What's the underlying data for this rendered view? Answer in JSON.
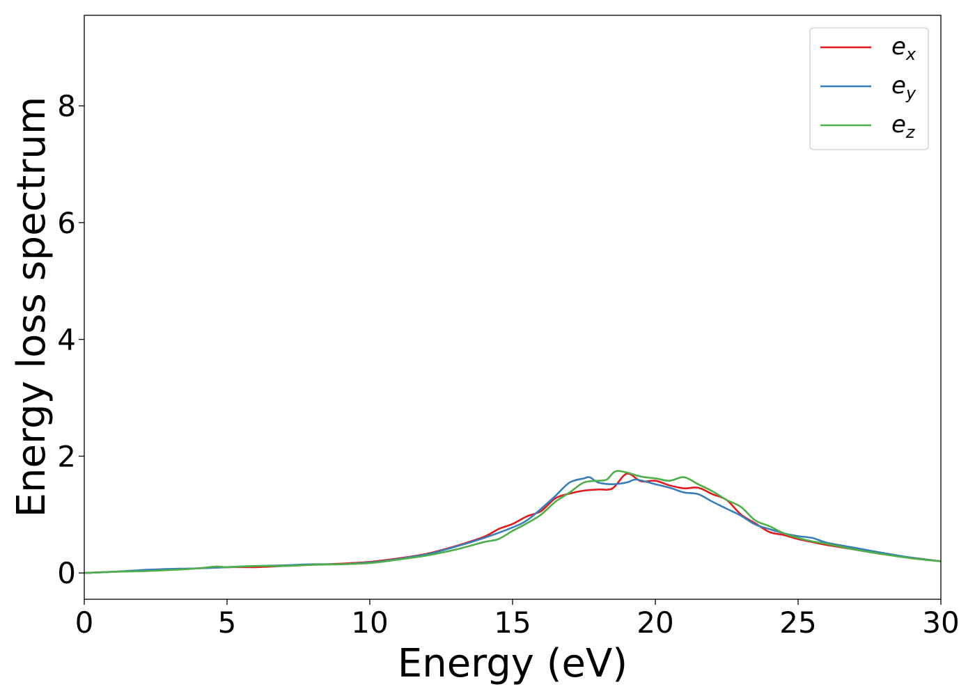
{
  "chart_data": {
    "type": "line",
    "title": "",
    "xlabel": "Energy (eV)",
    "ylabel": "Energy loss spectrum",
    "xlim": [
      0,
      30
    ],
    "ylim": [
      -0.45,
      9.55
    ],
    "xticks": [
      0,
      5,
      10,
      15,
      20,
      25,
      30
    ],
    "yticks": [
      0,
      2,
      4,
      6,
      8
    ],
    "grid": false,
    "legend_position": "top-right",
    "series": [
      {
        "name": "e_x",
        "label_main": "e",
        "label_sub": "x",
        "color": "#e41a1c",
        "x": [
          0,
          1,
          2,
          3,
          4,
          5,
          6,
          7,
          8,
          9,
          10,
          11,
          12,
          13,
          14,
          14.5,
          15,
          15.5,
          16,
          16.5,
          17,
          17.5,
          18,
          18.5,
          19,
          19.5,
          20,
          20.5,
          21,
          21.5,
          22,
          22.5,
          23,
          23.5,
          24,
          24.5,
          25,
          25.5,
          26,
          27,
          28,
          29,
          30
        ],
        "y": [
          0,
          0.02,
          0.04,
          0.06,
          0.08,
          0.1,
          0.1,
          0.12,
          0.14,
          0.16,
          0.19,
          0.25,
          0.33,
          0.46,
          0.62,
          0.75,
          0.84,
          0.97,
          1.06,
          1.28,
          1.36,
          1.41,
          1.43,
          1.45,
          1.7,
          1.57,
          1.58,
          1.5,
          1.45,
          1.46,
          1.35,
          1.25,
          1.0,
          0.85,
          0.7,
          0.65,
          0.58,
          0.53,
          0.48,
          0.4,
          0.32,
          0.26,
          0.2
        ]
      },
      {
        "name": "e_y",
        "label_main": "e",
        "label_sub": "y",
        "color": "#377eb8",
        "x": [
          0,
          1,
          2,
          2.5,
          3,
          4,
          5,
          6,
          7,
          8,
          9,
          10,
          11,
          12,
          13,
          14,
          15,
          15.5,
          16,
          16.5,
          17,
          17.5,
          17.7,
          18,
          18.5,
          19,
          19.3,
          19.7,
          20,
          20.5,
          21,
          21.5,
          22,
          22.5,
          23,
          23.5,
          24,
          24.5,
          25,
          25.5,
          26,
          27,
          28,
          29,
          30
        ],
        "y": [
          0,
          0.02,
          0.05,
          0.06,
          0.07,
          0.08,
          0.1,
          0.12,
          0.13,
          0.15,
          0.15,
          0.18,
          0.24,
          0.32,
          0.45,
          0.6,
          0.78,
          0.9,
          1.1,
          1.32,
          1.55,
          1.62,
          1.64,
          1.55,
          1.52,
          1.55,
          1.6,
          1.56,
          1.52,
          1.46,
          1.38,
          1.35,
          1.22,
          1.1,
          0.98,
          0.83,
          0.75,
          0.68,
          0.63,
          0.6,
          0.52,
          0.43,
          0.34,
          0.26,
          0.2
        ]
      },
      {
        "name": "e_z",
        "label_main": "e",
        "label_sub": "z",
        "color": "#4daf4a",
        "x": [
          0,
          1,
          2,
          3,
          4,
          4.6,
          5,
          6,
          7,
          8,
          9,
          10,
          11,
          12,
          13,
          14,
          14.5,
          15,
          15.5,
          16,
          16.5,
          17,
          17.5,
          18,
          18.3,
          18.6,
          19,
          19.5,
          20,
          20.5,
          21,
          21.5,
          22,
          22.5,
          23,
          23.5,
          24,
          24.5,
          25,
          25.5,
          26,
          27,
          28,
          29,
          30
        ],
        "y": [
          0,
          0.02,
          0.03,
          0.05,
          0.08,
          0.11,
          0.1,
          0.12,
          0.12,
          0.14,
          0.15,
          0.17,
          0.23,
          0.3,
          0.4,
          0.53,
          0.58,
          0.72,
          0.85,
          1.0,
          1.22,
          1.38,
          1.55,
          1.58,
          1.6,
          1.74,
          1.72,
          1.65,
          1.62,
          1.58,
          1.64,
          1.52,
          1.4,
          1.25,
          1.13,
          0.9,
          0.8,
          0.68,
          0.6,
          0.54,
          0.5,
          0.4,
          0.32,
          0.25,
          0.2
        ]
      }
    ]
  }
}
